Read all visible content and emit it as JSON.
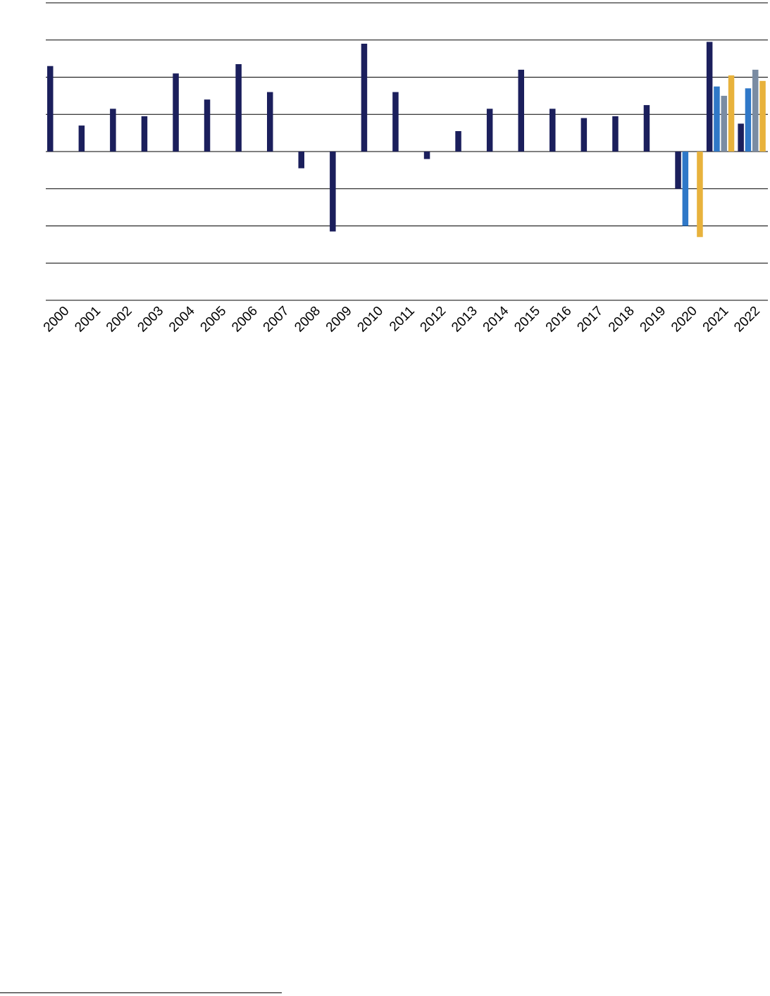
{
  "chart_data": {
    "type": "bar",
    "title": "",
    "xlabel": "",
    "ylabel": "",
    "ylim": [
      -8,
      8
    ],
    "grid": true,
    "legend": "none",
    "y_ticks": [
      -8,
      -6,
      -4,
      -2,
      0,
      2,
      4,
      6,
      8
    ],
    "categories": [
      "2000",
      "2001",
      "2002",
      "2003",
      "2004",
      "2005",
      "2006",
      "2007",
      "2008",
      "2009",
      "2010",
      "2011",
      "2012",
      "2013",
      "2014",
      "2015",
      "2016",
      "2017",
      "2018",
      "2019",
      "2020",
      "2021",
      "2022"
    ],
    "series": [
      {
        "color": "#1b1f5c",
        "values": [
          4.6,
          1.4,
          2.3,
          1.9,
          4.2,
          2.8,
          4.7,
          3.2,
          -0.9,
          -4.3,
          5.8,
          3.2,
          -0.4,
          1.1,
          2.3,
          4.4,
          2.3,
          1.8,
          1.9,
          2.5,
          -2.0,
          5.9,
          1.5
        ]
      },
      {
        "color": "#2f78c8",
        "values": [
          null,
          null,
          null,
          null,
          null,
          null,
          null,
          null,
          null,
          null,
          null,
          null,
          null,
          null,
          null,
          null,
          null,
          null,
          null,
          null,
          -4.0,
          3.5,
          3.4
        ]
      },
      {
        "color": "#7a8ca3",
        "values": [
          null,
          null,
          null,
          null,
          null,
          null,
          null,
          null,
          null,
          null,
          null,
          null,
          null,
          null,
          null,
          null,
          null,
          null,
          null,
          null,
          null,
          3.0,
          4.4
        ]
      },
      {
        "color": "#e8b23c",
        "values": [
          null,
          null,
          null,
          null,
          null,
          null,
          null,
          null,
          null,
          null,
          null,
          null,
          null,
          null,
          null,
          null,
          null,
          null,
          null,
          null,
          -4.6,
          4.1,
          3.8
        ]
      }
    ]
  }
}
